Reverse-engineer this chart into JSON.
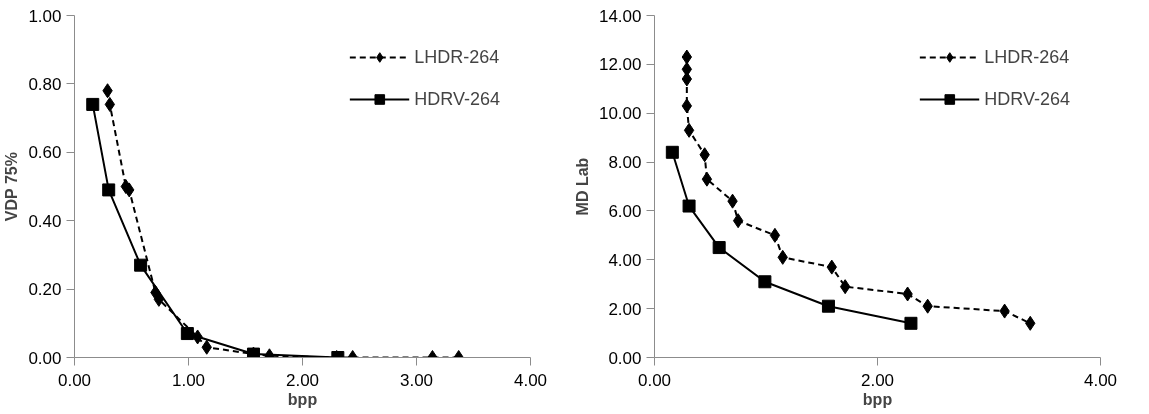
{
  "chart_data": [
    {
      "type": "line",
      "xlabel": "bpp",
      "ylabel": "VDP 75%",
      "xlim": [
        0,
        4
      ],
      "ylim": [
        0,
        1
      ],
      "xticks": [
        {
          "value": 0,
          "label": "0.00"
        },
        {
          "value": 1,
          "label": "1.00"
        },
        {
          "value": 2,
          "label": "2.00"
        },
        {
          "value": 3,
          "label": "3.00"
        },
        {
          "value": 4,
          "label": "4.00"
        }
      ],
      "yticks": [
        {
          "value": 0,
          "label": "0.00"
        },
        {
          "value": 0.2,
          "label": "0.20"
        },
        {
          "value": 0.4,
          "label": "0.40"
        },
        {
          "value": 0.6,
          "label": "0.60"
        },
        {
          "value": 0.8,
          "label": "0.80"
        },
        {
          "value": 1,
          "label": "1.00"
        }
      ],
      "grid": false,
      "legend": "top right",
      "series": [
        {
          "name": "LHDR-264",
          "color": "#000000",
          "marker": "diamond",
          "line_style": "dashed",
          "x": [
            0.29,
            0.31,
            0.45,
            0.48,
            0.71,
            0.74,
            1.08,
            1.16,
            1.57,
            1.71,
            2.3,
            2.44,
            3.14,
            3.37
          ],
          "values": [
            0.78,
            0.74,
            0.5,
            0.49,
            0.19,
            0.17,
            0.06,
            0.03,
            0.01,
            0.005,
            0,
            0,
            0,
            0
          ]
        },
        {
          "name": "HDRV-264",
          "color": "#000000",
          "marker": "square",
          "line_style": "solid",
          "x": [
            0.16,
            0.3,
            0.58,
            0.99,
            1.57,
            2.31
          ],
          "values": [
            0.74,
            0.49,
            0.27,
            0.07,
            0.01,
            0
          ]
        }
      ]
    },
    {
      "type": "line",
      "xlabel": "bpp",
      "ylabel": "MD Lab",
      "xlim": [
        0,
        4
      ],
      "ylim": [
        0,
        14
      ],
      "xticks": [
        {
          "value": 0,
          "label": "0.00"
        },
        {
          "value": 2,
          "label": "2.00"
        },
        {
          "value": 4,
          "label": "4.00"
        }
      ],
      "yticks": [
        {
          "value": 0,
          "label": "0.00"
        },
        {
          "value": 2,
          "label": "2.00"
        },
        {
          "value": 4,
          "label": "4.00"
        },
        {
          "value": 6,
          "label": "6.00"
        },
        {
          "value": 8,
          "label": "8.00"
        },
        {
          "value": 10,
          "label": "10.00"
        },
        {
          "value": 12,
          "label": "12.00"
        },
        {
          "value": 14,
          "label": "14.00"
        }
      ],
      "grid": false,
      "legend": "top right",
      "series": [
        {
          "name": "LHDR-264",
          "color": "#000000",
          "marker": "diamond",
          "line_style": "dashed",
          "x": [
            0.29,
            0.29,
            0.29,
            0.29,
            0.31,
            0.45,
            0.47,
            0.7,
            0.75,
            1.08,
            1.15,
            1.59,
            1.71,
            2.27,
            2.45,
            3.14,
            3.37
          ],
          "values": [
            12.3,
            11.8,
            11.4,
            10.3,
            9.3,
            8.3,
            7.3,
            6.4,
            5.6,
            5.0,
            4.1,
            3.7,
            2.9,
            2.6,
            2.1,
            1.9,
            1.4
          ]
        },
        {
          "name": "HDRV-264",
          "color": "#000000",
          "marker": "square",
          "line_style": "solid",
          "x": [
            0.16,
            0.31,
            0.58,
            0.99,
            1.56,
            2.3
          ],
          "values": [
            8.4,
            6.2,
            4.5,
            3.1,
            2.1,
            1.4
          ]
        }
      ]
    }
  ]
}
